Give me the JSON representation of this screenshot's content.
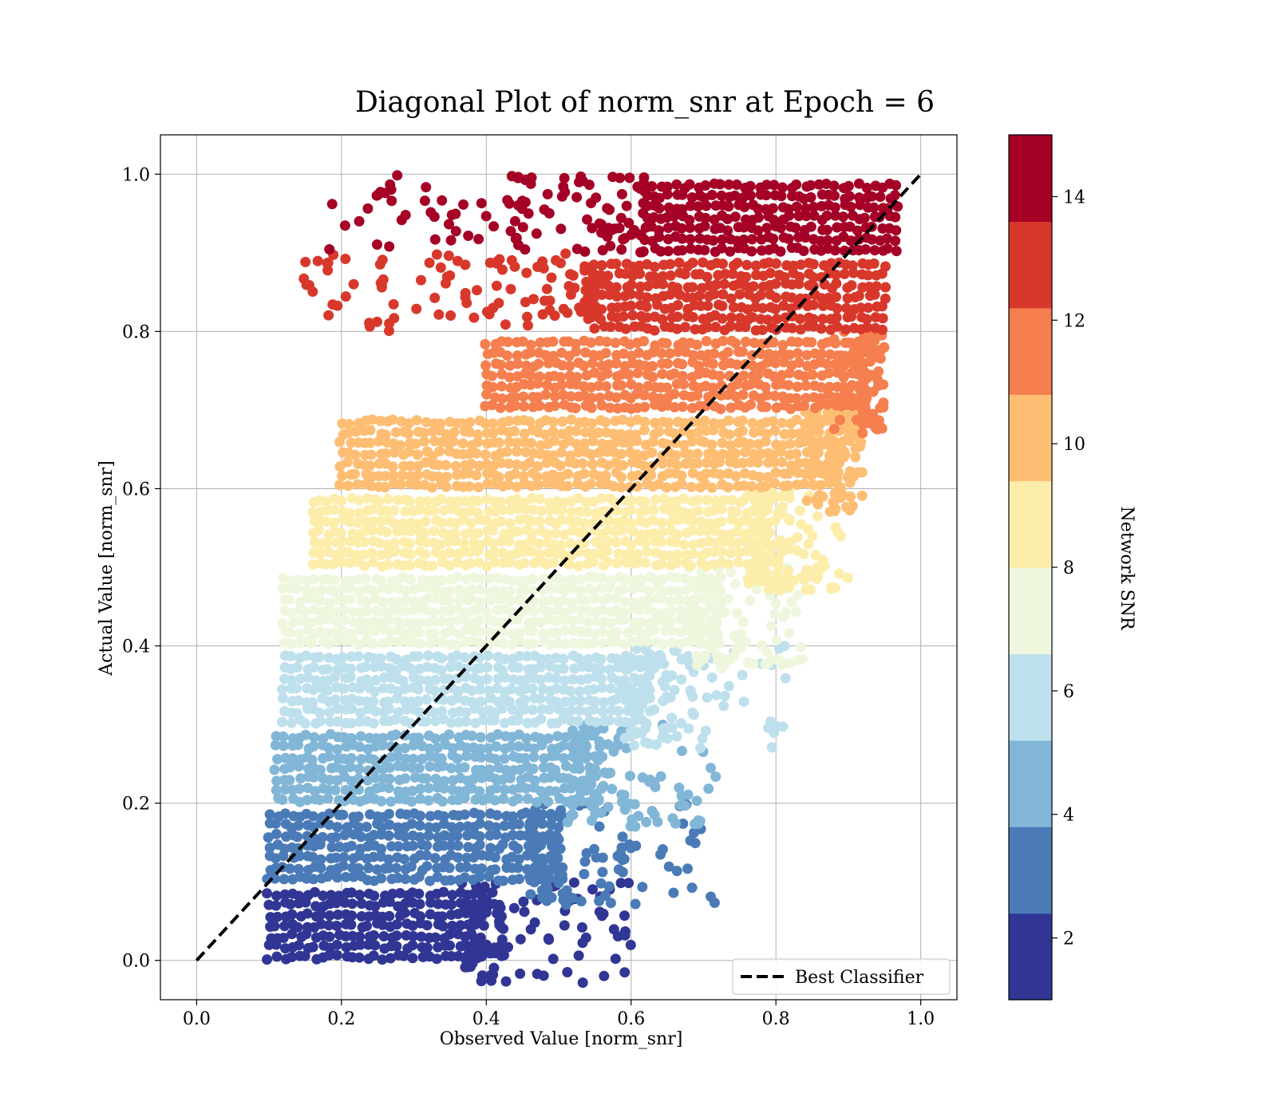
{
  "chart_data": {
    "type": "scatter",
    "title": "Diagonal Plot of norm_snr at Epoch = 6",
    "xlabel": "Observed Value [norm_snr]",
    "ylabel": "Actual Value [norm_snr]",
    "xlim": [
      -0.05,
      1.05
    ],
    "ylim": [
      -0.05,
      1.05
    ],
    "x_ticks": [
      "0.0",
      "0.2",
      "0.4",
      "0.6",
      "0.8",
      "1.0"
    ],
    "y_ticks": [
      "0.0",
      "0.2",
      "0.4",
      "0.6",
      "0.8",
      "1.0"
    ],
    "grid": true,
    "legend": {
      "position": "lower-right",
      "entries": [
        "Best Classifier"
      ]
    },
    "reference_line": {
      "name": "Best Classifier",
      "x": [
        0.0,
        1.0
      ],
      "y": [
        0.0,
        1.0
      ],
      "style": "dashed",
      "color": "#000000"
    },
    "colorbar": {
      "label": "Network SNR",
      "range": [
        1,
        15
      ],
      "ticks": [
        "2",
        "4",
        "6",
        "8",
        "10",
        "12",
        "14"
      ],
      "colors": [
        "#313695",
        "#4a7bb7",
        "#81b6d7",
        "#bee0ec",
        "#eef7de",
        "#fdedab",
        "#fdbe73",
        "#f57f4e",
        "#d8382b",
        "#a50026"
      ]
    },
    "bands": [
      {
        "snr_bin": [
          1.0,
          2.4
        ],
        "y_range": [
          0.0,
          0.1
        ],
        "dense_x": [
          0.1,
          0.4
        ],
        "scatter_x_max": 0.6,
        "color": "#313695"
      },
      {
        "snr_bin": [
          2.4,
          3.8
        ],
        "y_range": [
          0.1,
          0.2
        ],
        "dense_x": [
          0.1,
          0.5
        ],
        "scatter_x_max": 0.72,
        "color": "#4a7bb7"
      },
      {
        "snr_bin": [
          3.8,
          5.2
        ],
        "y_range": [
          0.2,
          0.3
        ],
        "dense_x": [
          0.11,
          0.55
        ],
        "scatter_x_max": 0.72,
        "color": "#81b6d7"
      },
      {
        "snr_bin": [
          5.2,
          6.6
        ],
        "y_range": [
          0.3,
          0.4
        ],
        "dense_x": [
          0.12,
          0.63
        ],
        "scatter_x_max": 0.82,
        "color": "#bee0ec"
      },
      {
        "snr_bin": [
          6.6,
          8.0
        ],
        "y_range": [
          0.4,
          0.5
        ],
        "dense_x": [
          0.12,
          0.72
        ],
        "scatter_x_max": 0.84,
        "color": "#eef7de"
      },
      {
        "snr_bin": [
          8.0,
          9.4
        ],
        "y_range": [
          0.5,
          0.6
        ],
        "dense_x": [
          0.16,
          0.8
        ],
        "scatter_x_max": 0.9,
        "color": "#fdedab"
      },
      {
        "snr_bin": [
          9.4,
          10.8
        ],
        "y_range": [
          0.6,
          0.7
        ],
        "dense_x": [
          0.2,
          0.88
        ],
        "scatter_x_max": 0.92,
        "color": "#fdbe73"
      },
      {
        "snr_bin": [
          10.8,
          12.2
        ],
        "y_range": [
          0.7,
          0.8
        ],
        "dense_x": [
          0.4,
          0.92
        ],
        "scatter_x_max": 0.95,
        "color": "#f57f4e"
      },
      {
        "snr_bin": [
          12.2,
          13.6
        ],
        "y_range": [
          0.8,
          0.9
        ],
        "dense_x": [
          0.55,
          0.95
        ],
        "scatter_x_min": 0.13,
        "color": "#d8382b"
      },
      {
        "snr_bin": [
          13.6,
          15.0
        ],
        "y_range": [
          0.9,
          1.0
        ],
        "dense_x": [
          0.62,
          0.97
        ],
        "scatter_x_min": 0.18,
        "color": "#a50026"
      }
    ]
  }
}
